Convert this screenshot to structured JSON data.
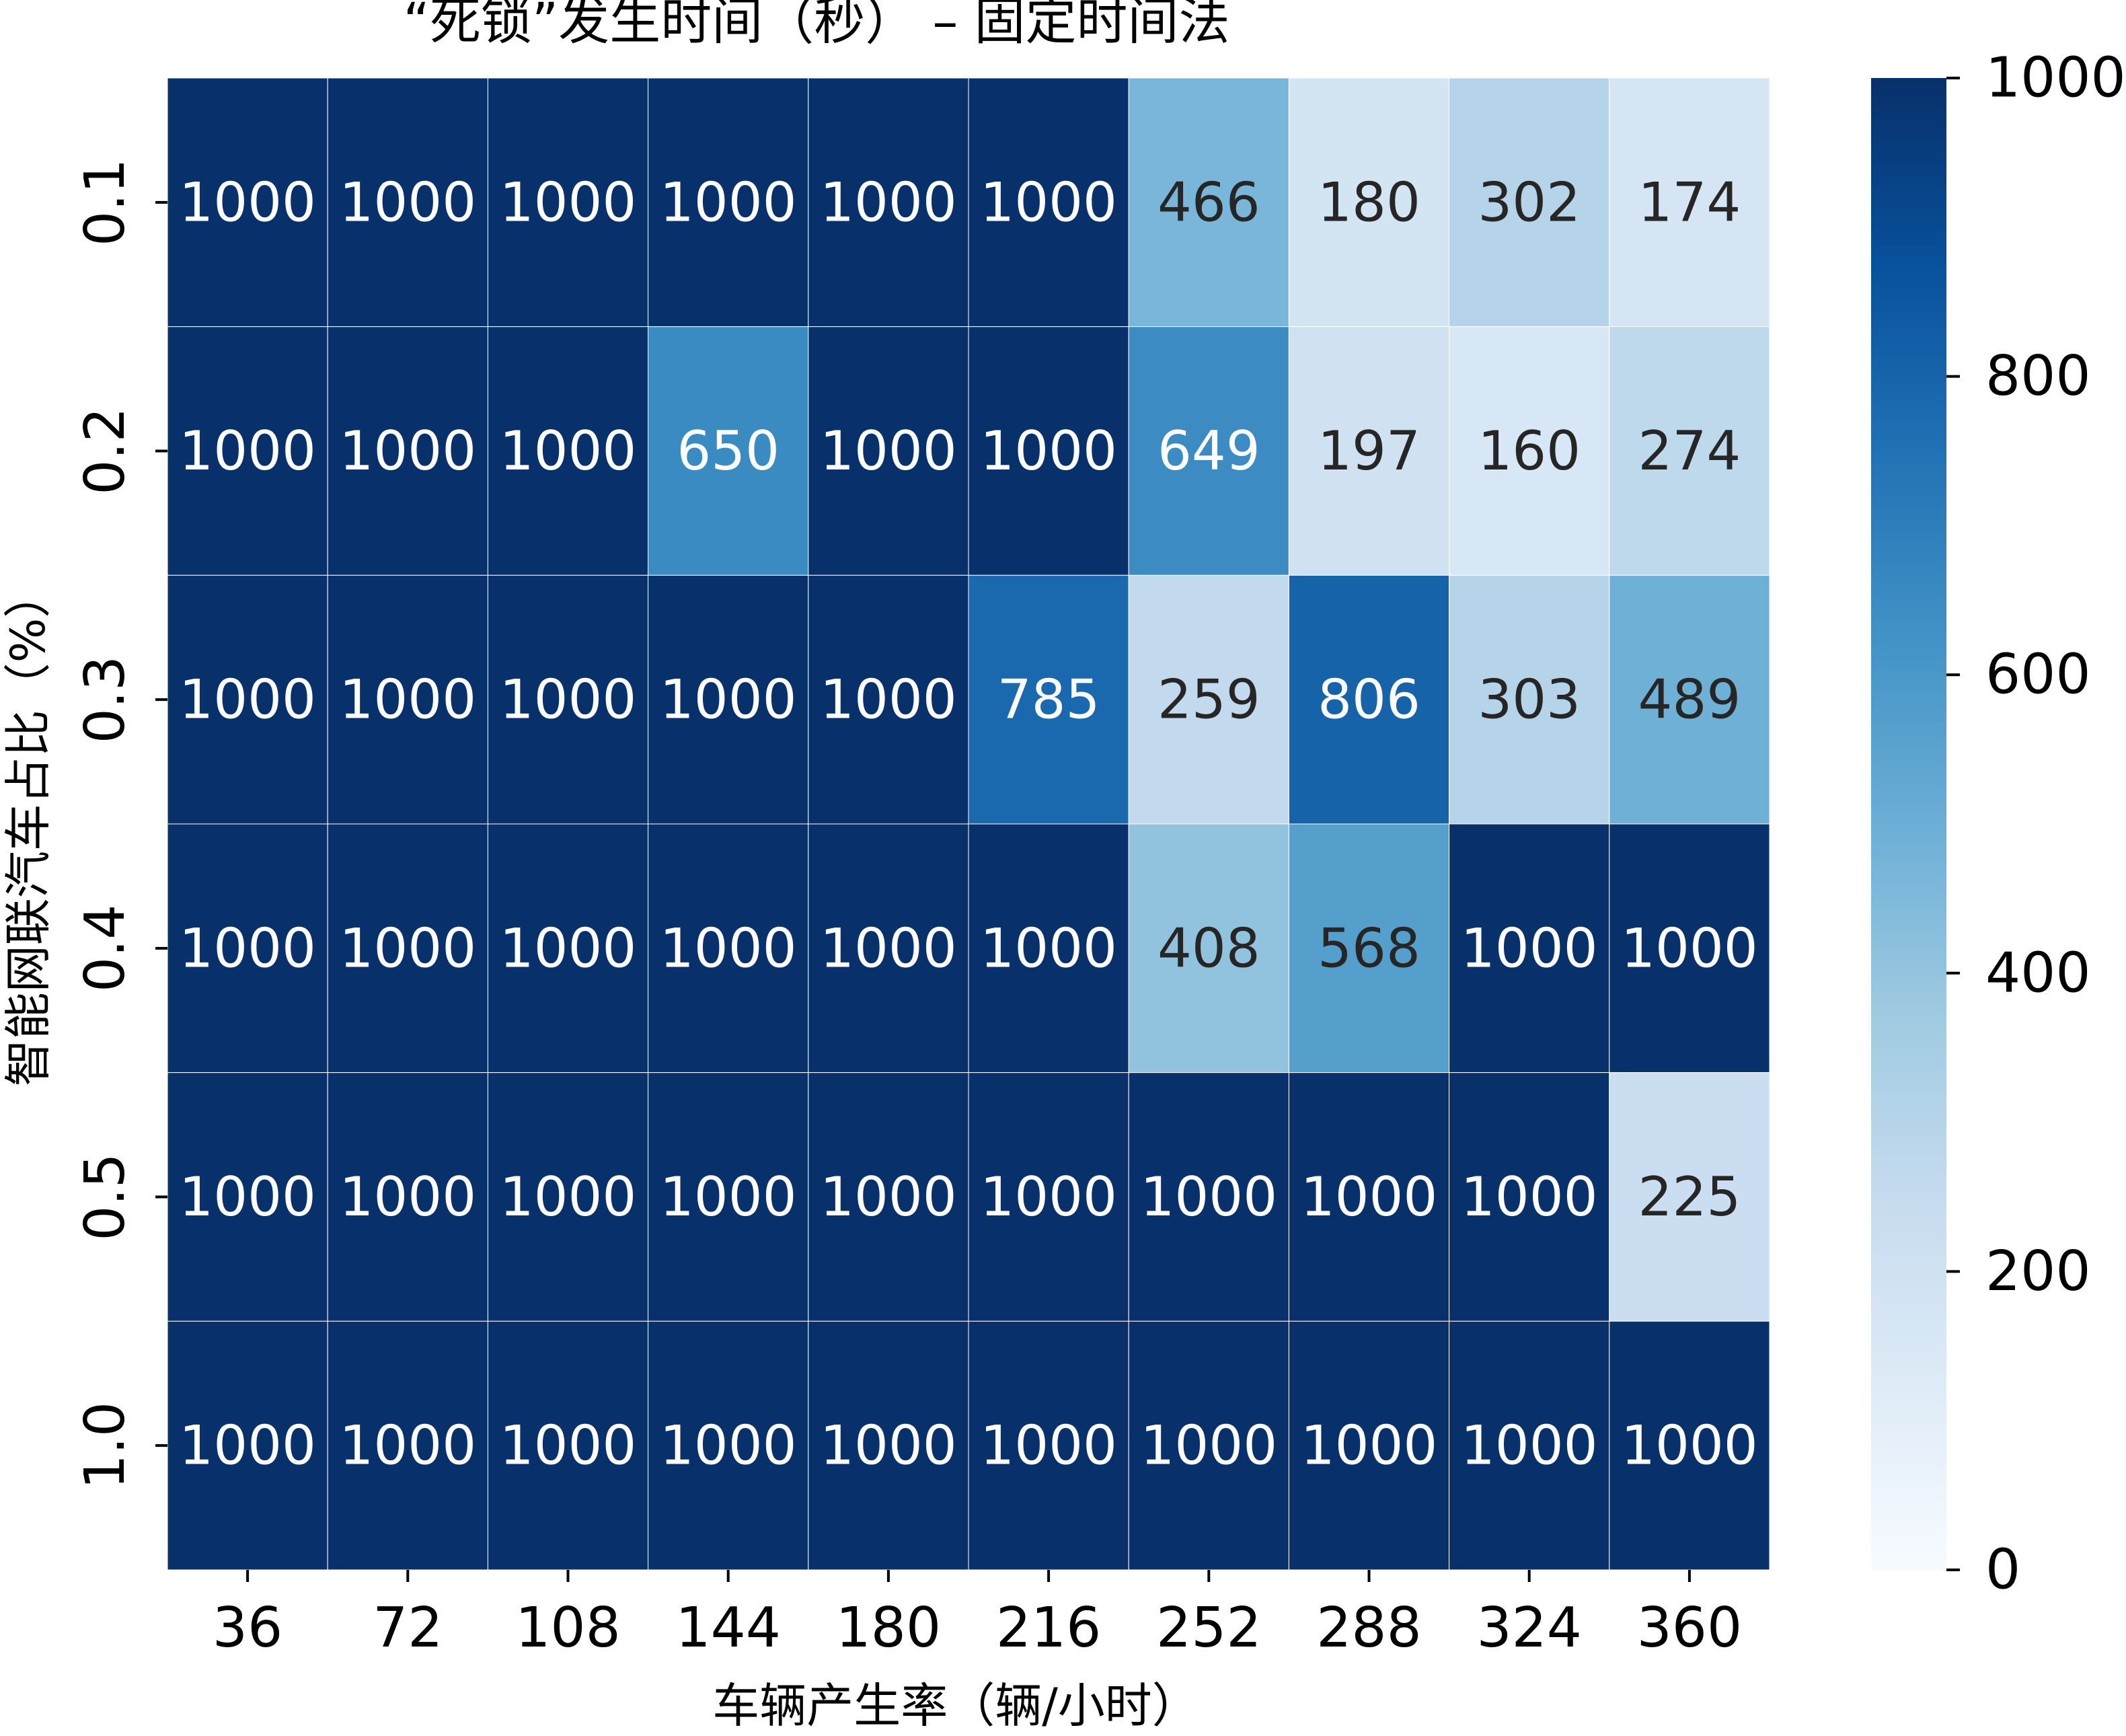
{
  "chart_data": {
    "type": "heatmap",
    "title": "“死锁”发生时间（秒） – 固定时间法",
    "xlabel": "车辆产生率（辆/小时）",
    "ylabel": "智能网联汽车占比（%）",
    "x_categories": [
      "36",
      "72",
      "108",
      "144",
      "180",
      "216",
      "252",
      "288",
      "324",
      "360"
    ],
    "y_categories": [
      "0.1",
      "0.2",
      "0.3",
      "0.4",
      "0.5",
      "1.0"
    ],
    "values": [
      [
        1000,
        1000,
        1000,
        1000,
        1000,
        1000,
        466,
        180,
        302,
        174
      ],
      [
        1000,
        1000,
        1000,
        650,
        1000,
        1000,
        649,
        197,
        160,
        274
      ],
      [
        1000,
        1000,
        1000,
        1000,
        1000,
        785,
        259,
        806,
        303,
        489
      ],
      [
        1000,
        1000,
        1000,
        1000,
        1000,
        1000,
        408,
        568,
        1000,
        1000
      ],
      [
        1000,
        1000,
        1000,
        1000,
        1000,
        1000,
        1000,
        1000,
        1000,
        225
      ],
      [
        1000,
        1000,
        1000,
        1000,
        1000,
        1000,
        1000,
        1000,
        1000,
        1000
      ]
    ],
    "colorbar": {
      "colormap": "Blues",
      "vmin": 0,
      "vmax": 1000,
      "ticks": [
        0,
        200,
        400,
        600,
        800,
        1000
      ]
    },
    "colors": {
      "scale": [
        "#f7fbff",
        "#deebf7",
        "#c6dbef",
        "#9ecae1",
        "#6baed6",
        "#4292c6",
        "#2171b5",
        "#08519c",
        "#08306b"
      ],
      "dark_text": "#262626",
      "light_text": "#ffffff",
      "cell_border": "#ffffff"
    },
    "annotations": true,
    "grid": false
  }
}
